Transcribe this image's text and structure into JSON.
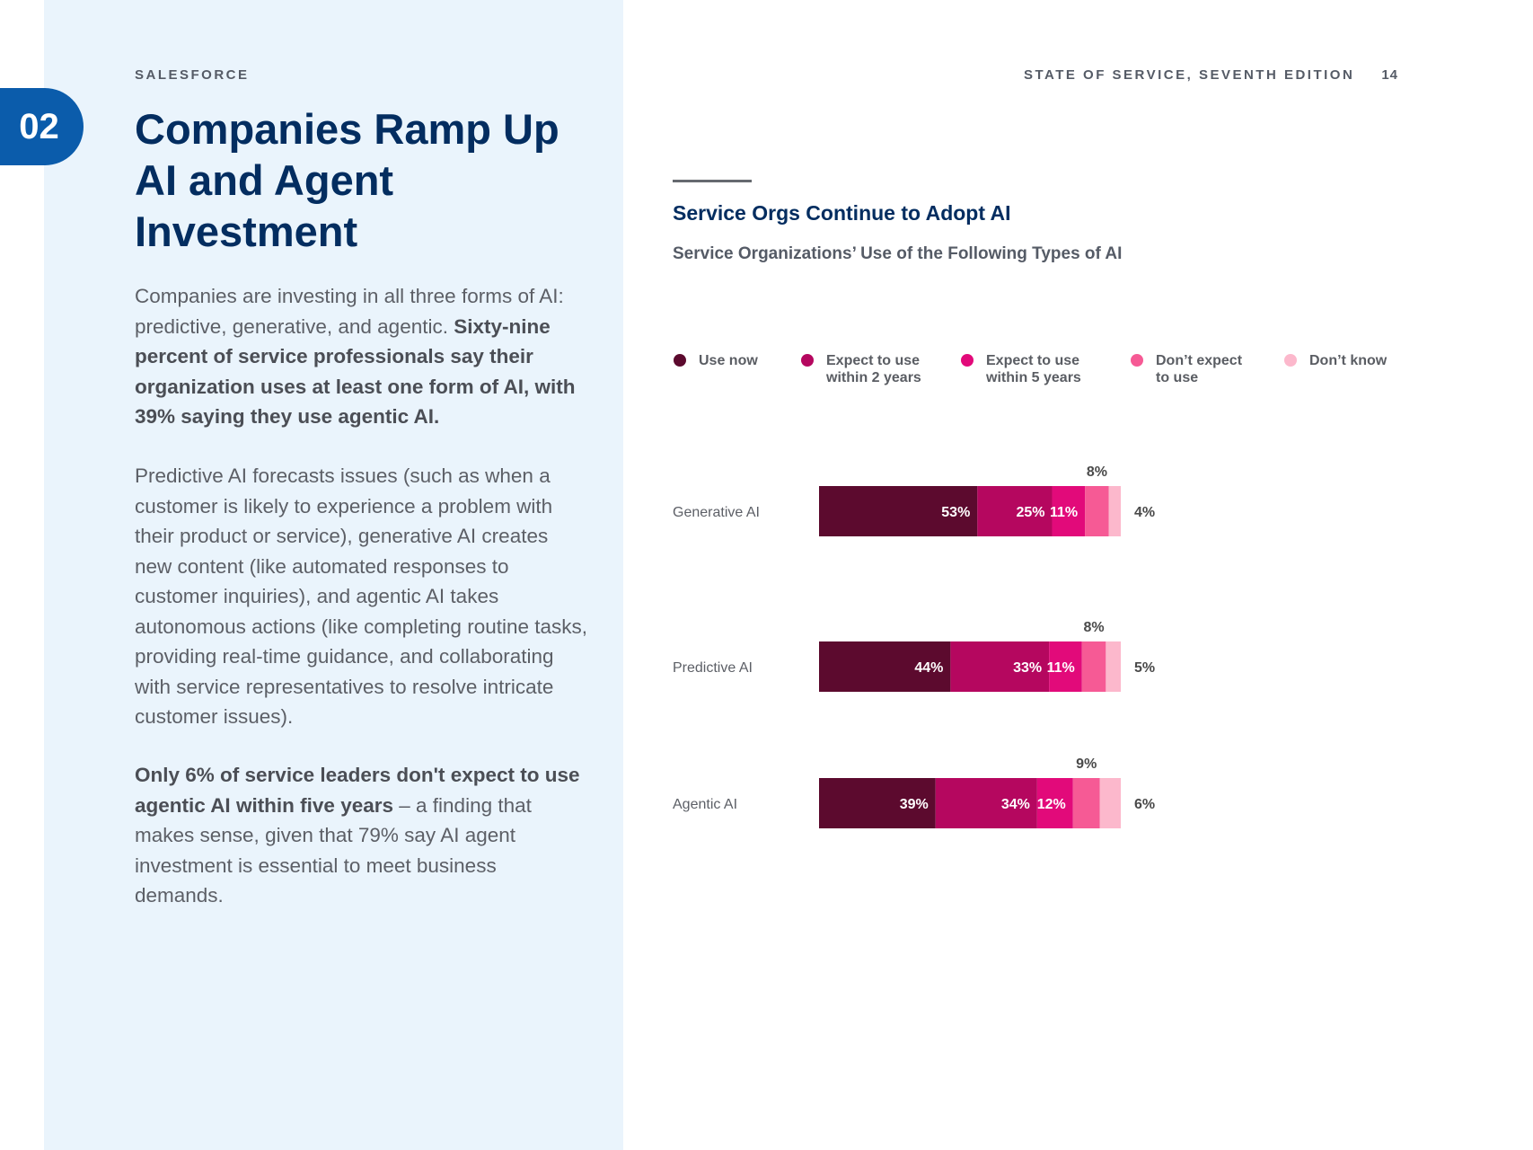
{
  "section": {
    "number": "02"
  },
  "header": {
    "brand": "SALESFORCE",
    "report": "STATE OF SERVICE, SEVENTH EDITION",
    "page_number": "14"
  },
  "intro": {
    "title": "Companies Ramp Up AI and Agent Investment",
    "p1_text": "Companies are investing in all three forms of AI: predictive, generative, and agentic.",
    "p1_bold": "Sixty-nine percent of service professionals say their organization uses at least one form of AI, with 39% saying they use agentic AI.",
    "p2_text": "Predictive AI forecasts issues (such as when a customer is likely to experience a problem with their product or service), generative AI creates new content (like automated responses to customer inquiries), and agentic AI takes autonomous actions (like completing routine tasks, providing real-time guidance, and collaborating with service representatives to resolve intricate customer issues).",
    "p3_bold": "Only 6% of service leaders don't expect to use agentic AI within five years",
    "p3_text": " – a finding that makes sense, given that 79% say AI agent investment is essential to meet business demands."
  },
  "chart_data": {
    "type": "bar",
    "orientation": "horizontal",
    "stacked": true,
    "title": "Service Orgs Continue to Adopt AI",
    "subtitle": "Service Organizations’ Use of the Following Types of AI",
    "categories": [
      "Generative AI",
      "Predictive AI",
      "Agentic AI"
    ],
    "unit": "%",
    "xlim": [
      0,
      100
    ],
    "legend_position": "top",
    "series": [
      {
        "name": "Use now",
        "color": "#5c0a2e",
        "values": [
          53,
          44,
          39
        ]
      },
      {
        "name": "Expect to use\nwithin 2 years",
        "color": "#b5075f",
        "values": [
          25,
          33,
          34
        ]
      },
      {
        "name": "Expect to use\nwithin 5 years",
        "color": "#e20a7a",
        "values": [
          11,
          11,
          12
        ]
      },
      {
        "name": "Don’t expect\nto use",
        "color": "#f65a95",
        "values": [
          8,
          8,
          9
        ]
      },
      {
        "name": "Don’t know",
        "color": "#fcb8cc",
        "values": [
          4,
          5,
          6
        ]
      }
    ]
  }
}
